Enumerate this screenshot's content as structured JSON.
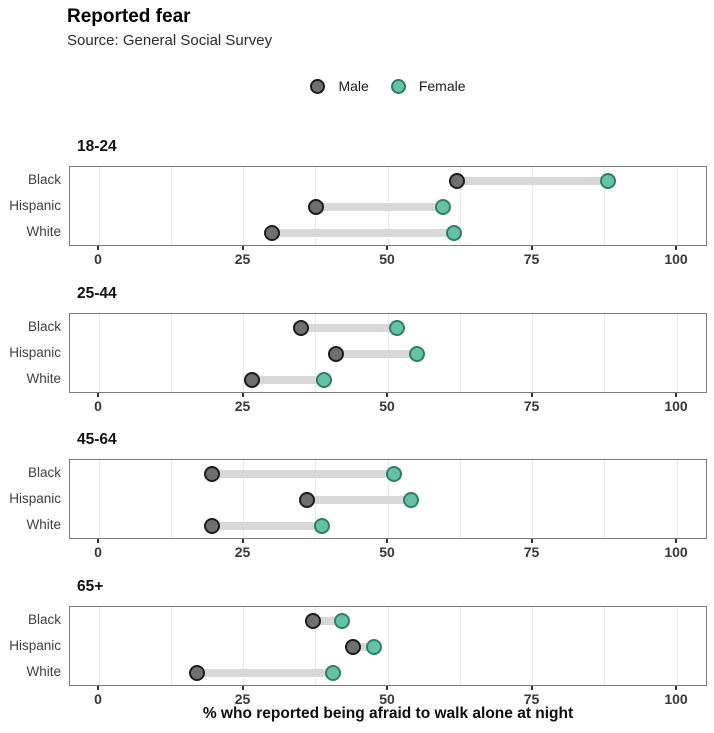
{
  "header": {
    "title": "Reported fear",
    "subtitle": "Source: General Social Survey"
  },
  "legend": {
    "items": [
      {
        "label": "Male",
        "fill": "#6f6f6f",
        "stroke": "#1c1c1c"
      },
      {
        "label": "Female",
        "fill": "#66c2a5",
        "stroke": "#2f7e67"
      }
    ]
  },
  "chart_data": {
    "type": "dumbbell",
    "title": "Reported fear",
    "subtitle": "Source: General Social Survey",
    "xlabel": "% who reported being afraid to walk alone at night",
    "series": [
      "Male",
      "Female"
    ],
    "xlim": [
      -5,
      105.5
    ],
    "x_ticks": [
      0,
      25,
      50,
      75,
      100
    ],
    "gridline_step": 12.5,
    "grid": "vertical",
    "legend_position": "top-center",
    "colors": {
      "male": "#6f6f6f",
      "female": "#66c2a5",
      "connector": "#d8d8d8"
    },
    "facets": [
      {
        "age": "18-24",
        "rows": [
          {
            "group": "Black",
            "male": 62,
            "female": 88
          },
          {
            "group": "Hispanic",
            "male": 37.5,
            "female": 59.5
          },
          {
            "group": "White",
            "male": 30,
            "female": 61.5
          }
        ]
      },
      {
        "age": "25-44",
        "rows": [
          {
            "group": "Black",
            "male": 35,
            "female": 51.5
          },
          {
            "group": "Hispanic",
            "male": 41,
            "female": 55
          },
          {
            "group": "White",
            "male": 26.5,
            "female": 39
          }
        ]
      },
      {
        "age": "45-64",
        "rows": [
          {
            "group": "Black",
            "male": 19.5,
            "female": 51
          },
          {
            "group": "Hispanic",
            "male": 36,
            "female": 54
          },
          {
            "group": "White",
            "male": 19.5,
            "female": 38.5
          }
        ]
      },
      {
        "age": "65+",
        "rows": [
          {
            "group": "Black",
            "male": 37,
            "female": 42
          },
          {
            "group": "Hispanic",
            "male": 44,
            "female": 47.5
          },
          {
            "group": "White",
            "male": 17,
            "female": 40.5
          }
        ]
      }
    ]
  }
}
